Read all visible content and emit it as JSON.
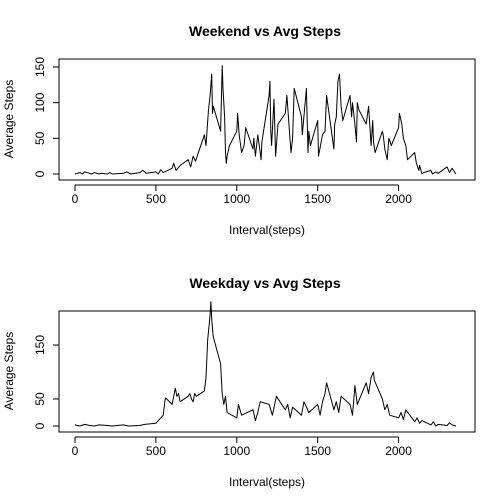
{
  "chart_data": [
    {
      "type": "line",
      "title": "Weekend vs Avg Steps",
      "xlabel": "Interval(steps)",
      "ylabel": "Average Steps",
      "xlim": [
        0,
        2355
      ],
      "ylim": [
        0,
        155
      ],
      "xticks": [
        0,
        500,
        1000,
        1500,
        2000
      ],
      "yticks": [
        0,
        50,
        100,
        150
      ],
      "grid": false,
      "series": [
        {
          "x": [
            0,
            30,
            45,
            60,
            90,
            100,
            120,
            150,
            160,
            200,
            215,
            230,
            300,
            320,
            345,
            400,
            420,
            440,
            500,
            515,
            530,
            545,
            600,
            610,
            625,
            650,
            700,
            715,
            730,
            745,
            800,
            810,
            825,
            835,
            845,
            850,
            855,
            900,
            910,
            915,
            925,
            930,
            935,
            940,
            955,
            1000,
            1005,
            1015,
            1030,
            1045,
            1055,
            1100,
            1105,
            1115,
            1130,
            1145,
            1150,
            1155,
            1200,
            1205,
            1210,
            1215,
            1230,
            1240,
            1255,
            1300,
            1310,
            1330,
            1335,
            1345,
            1355,
            1400,
            1405,
            1430,
            1440,
            1445,
            1455,
            1500,
            1505,
            1530,
            1545,
            1555,
            1600,
            1605,
            1615,
            1625,
            1635,
            1645,
            1655,
            1700,
            1710,
            1715,
            1730,
            1740,
            1745,
            1755,
            1800,
            1815,
            1830,
            1840,
            1845,
            1855,
            1900,
            1905,
            1915,
            1930,
            1940,
            1955,
            2000,
            2005,
            2020,
            2030,
            2045,
            2055,
            2100,
            2110,
            2125,
            2130,
            2145,
            2155,
            2200,
            2210,
            2230,
            2245,
            2300,
            2315,
            2330,
            2355
          ],
          "y": [
            0,
            2,
            0,
            3,
            1,
            0,
            2,
            0,
            1,
            0,
            2,
            0,
            1,
            3,
            0,
            2,
            5,
            1,
            3,
            0,
            6,
            2,
            8,
            15,
            5,
            12,
            20,
            10,
            25,
            18,
            55,
            40,
            90,
            110,
            140,
            85,
            95,
            60,
            152,
            120,
            80,
            30,
            15,
            25,
            40,
            60,
            85,
            55,
            30,
            40,
            65,
            35,
            50,
            25,
            55,
            30,
            20,
            45,
            110,
            130,
            60,
            40,
            105,
            25,
            70,
            85,
            110,
            45,
            30,
            50,
            120,
            80,
            55,
            120,
            30,
            60,
            40,
            75,
            25,
            55,
            60,
            110,
            35,
            70,
            80,
            130,
            140,
            95,
            75,
            110,
            80,
            100,
            70,
            45,
            100,
            90,
            70,
            95,
            40,
            75,
            45,
            30,
            60,
            55,
            35,
            20,
            50,
            40,
            65,
            85,
            70,
            50,
            40,
            20,
            30,
            15,
            5,
            12,
            0,
            2,
            5,
            0,
            3,
            1,
            10,
            2,
            8,
            0
          ]
        }
      ]
    },
    {
      "type": "line",
      "title": "Weekday vs Avg Steps",
      "xlabel": "Interval(steps)",
      "ylabel": "Average Steps",
      "xlim": [
        0,
        2355
      ],
      "ylim": [
        0,
        230
      ],
      "xticks": [
        0,
        500,
        1000,
        1500,
        2000
      ],
      "yticks": [
        0,
        50,
        150
      ],
      "grid": false,
      "series": [
        {
          "x": [
            0,
            30,
            60,
            90,
            120,
            150,
            200,
            230,
            300,
            330,
            400,
            430,
            500,
            530,
            545,
            555,
            560,
            600,
            610,
            620,
            630,
            640,
            650,
            700,
            710,
            720,
            730,
            740,
            750,
            800,
            810,
            820,
            830,
            835,
            840,
            845,
            850,
            855,
            900,
            910,
            920,
            930,
            940,
            1000,
            1010,
            1030,
            1100,
            1115,
            1130,
            1145,
            1200,
            1220,
            1245,
            1300,
            1315,
            1330,
            1345,
            1400,
            1415,
            1430,
            1445,
            1500,
            1515,
            1530,
            1545,
            1555,
            1600,
            1615,
            1630,
            1645,
            1700,
            1715,
            1730,
            1745,
            1800,
            1815,
            1830,
            1845,
            1850,
            1900,
            1915,
            1930,
            1945,
            2000,
            2015,
            2030,
            2045,
            2100,
            2115,
            2130,
            2145,
            2200,
            2215,
            2230,
            2245,
            2300,
            2315,
            2330,
            2355
          ],
          "y": [
            2,
            0,
            3,
            1,
            0,
            2,
            1,
            0,
            2,
            0,
            1,
            3,
            5,
            15,
            20,
            45,
            52,
            40,
            55,
            70,
            55,
            60,
            45,
            55,
            60,
            50,
            45,
            60,
            55,
            65,
            90,
            160,
            190,
            206,
            230,
            200,
            180,
            165,
            115,
            60,
            40,
            55,
            25,
            15,
            40,
            20,
            30,
            10,
            25,
            45,
            40,
            20,
            55,
            30,
            40,
            15,
            35,
            20,
            45,
            35,
            25,
            40,
            20,
            45,
            60,
            80,
            30,
            45,
            25,
            55,
            40,
            20,
            75,
            40,
            80,
            60,
            90,
            100,
            85,
            50,
            30,
            40,
            20,
            15,
            25,
            12,
            30,
            8,
            15,
            5,
            10,
            2,
            8,
            0,
            3,
            1,
            6,
            2,
            0
          ]
        }
      ]
    }
  ]
}
